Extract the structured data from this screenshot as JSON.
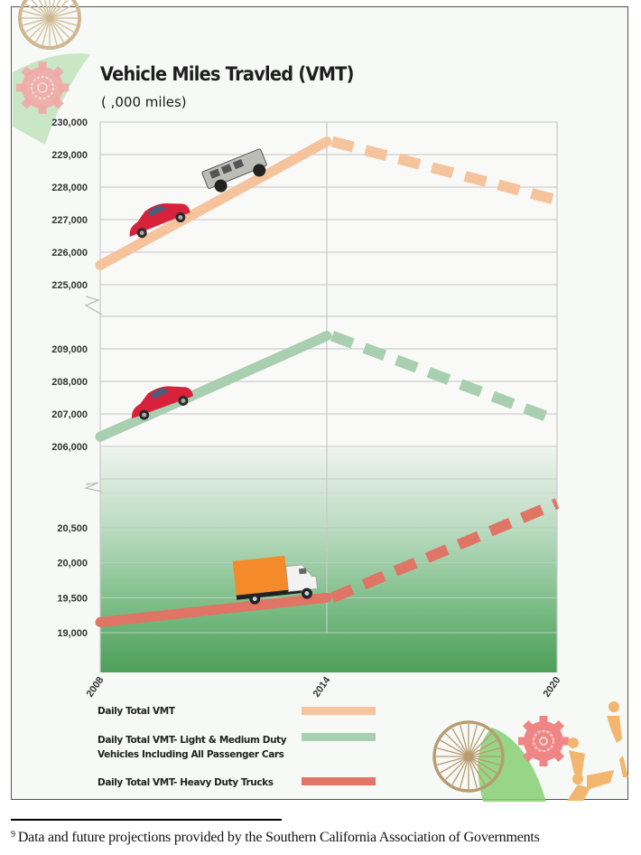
{
  "chart_data": {
    "type": "line",
    "title": "Vehicle Miles Travled  (VMT)",
    "subtitle": "( ,000 miles)",
    "xlabel": "",
    "ylabel": "",
    "x": [
      "2008",
      "2014",
      "2020"
    ],
    "projection_start": "2014",
    "grid": true,
    "legend_position": "bottom",
    "panels": [
      {
        "name": "top",
        "ylim": [
          225000,
          230000
        ],
        "yticks": [
          "230,000",
          "229,000",
          "228,000",
          "227,000",
          "226,000",
          "225,000"
        ],
        "ytick_values": [
          230000,
          229000,
          228000,
          227000,
          226000,
          225000
        ],
        "series_index": 0
      },
      {
        "name": "middle",
        "ylim": [
          205000,
          210000
        ],
        "yticks": [
          "209,000",
          "208,000",
          "207,000",
          "206,000"
        ],
        "ytick_values": [
          209000,
          208000,
          207000,
          206000
        ],
        "series_index": 1
      },
      {
        "name": "bottom",
        "ylim": [
          18500,
          21000
        ],
        "yticks": [
          "20,500",
          "20,000",
          "19,500",
          "19,000"
        ],
        "ytick_values": [
          20500,
          20000,
          19500,
          19000
        ],
        "series_index": 2
      }
    ],
    "series": [
      {
        "name": "Daily Total VMT",
        "color": "#f5c39c",
        "values": [
          225600,
          229400,
          227600
        ],
        "style": [
          "solid",
          "dashed"
        ]
      },
      {
        "name": "Daily Total VMT- Light & Medium Duty Vehicles Including All Passenger Cars",
        "legend_lines": [
          "Daily Total VMT- Light & Medium Duty",
          "Vehicles Including All Passenger Cars"
        ],
        "color": "#a8cfb0",
        "values": [
          206300,
          209400,
          206800
        ],
        "style": [
          "solid",
          "dashed"
        ]
      },
      {
        "name": "Daily Total VMT- Heavy Duty Trucks",
        "color": "#e07465",
        "values": [
          19150,
          19500,
          20850
        ],
        "style": [
          "solid",
          "dashed"
        ]
      }
    ],
    "annotations": [
      "red-car-icon",
      "hummer-suv-icon",
      "red-car-icon",
      "box-truck-icon"
    ]
  },
  "footnote": {
    "marker": "9",
    "text": "Data and future projections provided by the Southern California Association of Governments"
  },
  "colors": {
    "bottom_panel_gradient_top": "#e8f1ea",
    "bottom_panel_gradient_bottom": "#4ea15a",
    "gridline": "#cfcfcf"
  }
}
